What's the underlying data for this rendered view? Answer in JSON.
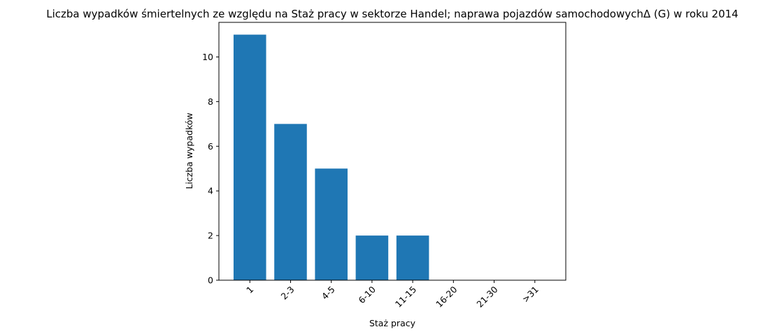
{
  "chart_data": {
    "type": "bar",
    "title": "Liczba wypadków śmiertelnych ze względu na Staż pracy w sektorze Handel; naprawa pojazdów samochodowychΔ (G) w roku 2014",
    "xlabel": "Staż pracy",
    "ylabel": "Liczba wypadków",
    "categories": [
      "1",
      "2-3",
      "4-5",
      "6-10",
      "11-15",
      "16-20",
      "21-30",
      ">31"
    ],
    "values": [
      11,
      7,
      5,
      2,
      2,
      0,
      0,
      0
    ],
    "ylim": [
      0,
      11.55
    ],
    "yticks": [
      "0",
      "2",
      "4",
      "6",
      "8",
      "10"
    ],
    "bar_color": "#1f77b4",
    "grid": false,
    "legend": "none"
  }
}
